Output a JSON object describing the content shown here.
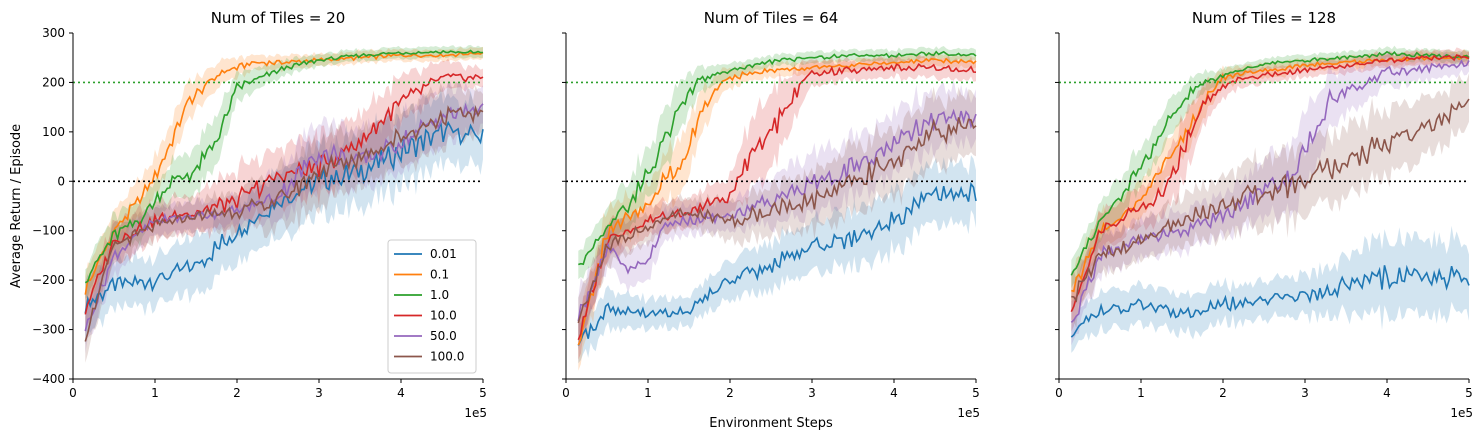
{
  "chart_data": [
    {
      "type": "line",
      "title": "Num of Tiles = 20",
      "xlabel": "",
      "ylabel": "Average Return / Episode",
      "x_multiplier_label": "1e5",
      "xlim": [
        0,
        5
      ],
      "ylim": [
        -400,
        300
      ],
      "xticks": [
        0,
        1,
        2,
        3,
        4,
        5
      ],
      "yticks": [
        -400,
        -300,
        -200,
        -100,
        0,
        100,
        200,
        300
      ],
      "reference_lines": [
        {
          "y": 200,
          "color": "#2ca02c",
          "style": "dotted"
        },
        {
          "y": 0,
          "color": "#000000",
          "style": "dotted"
        }
      ],
      "legend": {
        "position": "lower-right"
      },
      "series": [
        {
          "name": "0.01",
          "color": "#1f77b4",
          "x": [
            0.15,
            0.5,
            1.0,
            1.5,
            2.0,
            2.5,
            3.0,
            3.5,
            4.0,
            4.5,
            5.0
          ],
          "y": [
            -250,
            -210,
            -200,
            -170,
            -100,
            -40,
            0,
            20,
            60,
            100,
            90
          ],
          "band": [
            60,
            50,
            50,
            60,
            60,
            70,
            70,
            70,
            70,
            70,
            60
          ]
        },
        {
          "name": "0.1",
          "color": "#ff7f0e",
          "x": [
            0.15,
            0.5,
            0.8,
            1.0,
            1.2,
            1.4,
            1.6,
            1.8,
            2.0,
            2.2,
            2.5,
            3.0,
            3.5,
            4.0,
            4.5,
            5.0
          ],
          "y": [
            -220,
            -100,
            -40,
            10,
            80,
            160,
            190,
            220,
            230,
            240,
            240,
            245,
            250,
            255,
            255,
            260
          ],
          "band": [
            40,
            40,
            40,
            40,
            40,
            40,
            30,
            25,
            20,
            15,
            15,
            12,
            12,
            12,
            12,
            12
          ]
        },
        {
          "name": "1.0",
          "color": "#2ca02c",
          "x": [
            0.15,
            0.5,
            0.8,
            1.0,
            1.2,
            1.5,
            1.8,
            2.0,
            2.3,
            2.6,
            3.0,
            3.5,
            4.0,
            4.5,
            5.0
          ],
          "y": [
            -200,
            -110,
            -80,
            -40,
            0,
            20,
            100,
            190,
            210,
            230,
            245,
            255,
            260,
            262,
            260
          ],
          "band": [
            30,
            40,
            40,
            40,
            40,
            50,
            50,
            30,
            20,
            15,
            12,
            12,
            12,
            12,
            12
          ]
        },
        {
          "name": "10.0",
          "color": "#d62728",
          "x": [
            0.15,
            0.5,
            1.0,
            1.5,
            2.0,
            2.5,
            3.0,
            3.5,
            4.0,
            4.5,
            5.0
          ],
          "y": [
            -260,
            -120,
            -80,
            -60,
            -40,
            10,
            30,
            80,
            160,
            210,
            210
          ],
          "band": [
            40,
            40,
            40,
            40,
            60,
            60,
            60,
            60,
            50,
            30,
            20
          ]
        },
        {
          "name": "50.0",
          "color": "#9467bd",
          "x": [
            0.15,
            0.5,
            1.0,
            1.5,
            2.0,
            2.5,
            3.0,
            3.5,
            4.0,
            4.5,
            5.0
          ],
          "y": [
            -300,
            -150,
            -80,
            -70,
            -60,
            -30,
            60,
            40,
            80,
            130,
            150
          ],
          "band": [
            40,
            40,
            30,
            30,
            30,
            50,
            70,
            60,
            60,
            60,
            40
          ]
        },
        {
          "name": "100.0",
          "color": "#8c564b",
          "x": [
            0.15,
            0.5,
            1.0,
            1.5,
            2.0,
            2.5,
            3.0,
            3.5,
            4.0,
            4.5,
            5.0
          ],
          "y": [
            -310,
            -130,
            -90,
            -70,
            -60,
            -40,
            20,
            50,
            90,
            130,
            140
          ],
          "band": [
            50,
            40,
            30,
            30,
            40,
            60,
            70,
            60,
            60,
            60,
            40
          ]
        }
      ]
    },
    {
      "type": "line",
      "title": "Num of Tiles = 64",
      "xlabel": "Environment Steps",
      "ylabel": "",
      "x_multiplier_label": "1e5",
      "xlim": [
        0,
        5
      ],
      "ylim": [
        -400,
        300
      ],
      "xticks": [
        0,
        1,
        2,
        3,
        4,
        5
      ],
      "yticks": [
        -400,
        -300,
        -200,
        -100,
        0,
        100,
        200,
        300
      ],
      "reference_lines": [
        {
          "y": 200,
          "color": "#2ca02c",
          "style": "dotted"
        },
        {
          "y": 0,
          "color": "#000000",
          "style": "dotted"
        }
      ],
      "series": [
        {
          "name": "0.01",
          "color": "#1f77b4",
          "x": [
            0.15,
            0.5,
            1.0,
            1.5,
            2.0,
            2.5,
            3.0,
            3.5,
            4.0,
            4.5,
            5.0
          ],
          "y": [
            -330,
            -260,
            -270,
            -260,
            -200,
            -170,
            -130,
            -120,
            -80,
            -30,
            -20
          ],
          "band": [
            40,
            40,
            30,
            30,
            40,
            50,
            50,
            60,
            60,
            60,
            60
          ]
        },
        {
          "name": "0.1",
          "color": "#ff7f0e",
          "x": [
            0.15,
            0.5,
            0.8,
            1.0,
            1.2,
            1.4,
            1.6,
            1.8,
            2.0,
            2.3,
            2.6,
            3.0,
            3.5,
            4.0,
            4.5,
            5.0
          ],
          "y": [
            -340,
            -100,
            -70,
            -40,
            0,
            30,
            120,
            180,
            210,
            220,
            225,
            230,
            235,
            240,
            245,
            240
          ],
          "band": [
            50,
            50,
            40,
            40,
            50,
            60,
            50,
            30,
            20,
            15,
            15,
            12,
            12,
            12,
            12,
            12
          ]
        },
        {
          "name": "1.0",
          "color": "#2ca02c",
          "x": [
            0.15,
            0.5,
            0.8,
            1.0,
            1.2,
            1.4,
            1.6,
            1.8,
            2.0,
            2.3,
            2.6,
            3.0,
            3.5,
            4.0,
            4.5,
            5.0
          ],
          "y": [
            -170,
            -90,
            -40,
            20,
            80,
            150,
            200,
            215,
            225,
            235,
            245,
            250,
            255,
            255,
            258,
            255
          ],
          "band": [
            30,
            40,
            50,
            50,
            60,
            50,
            30,
            20,
            15,
            12,
            12,
            12,
            12,
            12,
            12,
            12
          ]
        },
        {
          "name": "10.0",
          "color": "#d62728",
          "x": [
            0.15,
            0.5,
            1.0,
            1.5,
            2.0,
            2.2,
            2.5,
            2.8,
            3.0,
            3.5,
            4.0,
            4.5,
            5.0
          ],
          "y": [
            -320,
            -120,
            -80,
            -60,
            -30,
            40,
            100,
            180,
            220,
            225,
            230,
            230,
            225
          ],
          "band": [
            40,
            40,
            30,
            30,
            40,
            70,
            80,
            50,
            25,
            20,
            20,
            20,
            20
          ]
        },
        {
          "name": "50.0",
          "color": "#9467bd",
          "x": [
            0.15,
            0.5,
            0.8,
            1.0,
            1.2,
            1.5,
            2.0,
            2.5,
            3.0,
            3.5,
            4.0,
            4.5,
            5.0
          ],
          "y": [
            -280,
            -130,
            -180,
            -160,
            -90,
            -80,
            -70,
            -40,
            -10,
            30,
            70,
            130,
            130
          ],
          "band": [
            50,
            40,
            40,
            40,
            30,
            30,
            30,
            50,
            60,
            60,
            60,
            60,
            50
          ]
        },
        {
          "name": "100.0",
          "color": "#8c564b",
          "x": [
            0.15,
            0.5,
            1.0,
            1.5,
            2.0,
            2.5,
            3.0,
            3.5,
            4.0,
            4.5,
            5.0
          ],
          "y": [
            -290,
            -130,
            -90,
            -60,
            -80,
            -60,
            -40,
            0,
            40,
            100,
            120
          ],
          "band": [
            50,
            40,
            30,
            30,
            40,
            50,
            60,
            70,
            70,
            70,
            60
          ]
        }
      ]
    },
    {
      "type": "line",
      "title": "Num of Tiles = 128",
      "xlabel": "",
      "ylabel": "",
      "x_multiplier_label": "1e5",
      "xlim": [
        0,
        5
      ],
      "ylim": [
        -400,
        300
      ],
      "xticks": [
        0,
        1,
        2,
        3,
        4,
        5
      ],
      "yticks": [
        -400,
        -300,
        -200,
        -100,
        0,
        100,
        200,
        300
      ],
      "reference_lines": [
        {
          "y": 200,
          "color": "#2ca02c",
          "style": "dotted"
        },
        {
          "y": 0,
          "color": "#000000",
          "style": "dotted"
        }
      ],
      "series": [
        {
          "name": "0.01",
          "color": "#1f77b4",
          "x": [
            0.15,
            0.5,
            1.0,
            1.5,
            2.0,
            2.5,
            3.0,
            3.5,
            4.0,
            4.5,
            5.0
          ],
          "y": [
            -310,
            -260,
            -250,
            -270,
            -250,
            -240,
            -230,
            -210,
            -190,
            -200,
            -190
          ],
          "band": [
            30,
            40,
            40,
            40,
            40,
            40,
            40,
            60,
            80,
            80,
            70
          ]
        },
        {
          "name": "0.1",
          "color": "#ff7f0e",
          "x": [
            0.15,
            0.5,
            1.0,
            1.3,
            1.6,
            1.8,
            2.0,
            2.3,
            2.6,
            3.0,
            3.5,
            4.0,
            4.5,
            5.0
          ],
          "y": [
            -230,
            -100,
            -40,
            40,
            110,
            170,
            210,
            220,
            225,
            235,
            240,
            245,
            250,
            250
          ],
          "band": [
            40,
            40,
            40,
            40,
            40,
            30,
            20,
            15,
            15,
            12,
            12,
            12,
            12,
            12
          ]
        },
        {
          "name": "1.0",
          "color": "#2ca02c",
          "x": [
            0.15,
            0.5,
            0.8,
            1.0,
            1.3,
            1.6,
            1.8,
            2.0,
            2.3,
            2.6,
            3.0,
            3.5,
            4.0,
            4.5,
            5.0
          ],
          "y": [
            -190,
            -80,
            -20,
            30,
            110,
            180,
            200,
            215,
            230,
            240,
            245,
            250,
            258,
            255,
            252
          ],
          "band": [
            30,
            40,
            40,
            40,
            40,
            30,
            20,
            15,
            12,
            12,
            12,
            12,
            12,
            12,
            12
          ]
        },
        {
          "name": "10.0",
          "color": "#d62728",
          "x": [
            0.15,
            0.5,
            1.0,
            1.3,
            1.5,
            1.7,
            1.9,
            2.1,
            2.5,
            3.0,
            3.5,
            4.0,
            4.5,
            5.0
          ],
          "y": [
            -260,
            -100,
            -50,
            -20,
            60,
            140,
            180,
            200,
            215,
            225,
            235,
            245,
            250,
            250
          ],
          "band": [
            40,
            40,
            40,
            50,
            70,
            50,
            30,
            20,
            15,
            15,
            15,
            15,
            15,
            15
          ]
        },
        {
          "name": "50.0",
          "color": "#9467bd",
          "x": [
            0.15,
            0.5,
            1.0,
            1.5,
            2.0,
            2.5,
            2.8,
            3.0,
            3.3,
            3.6,
            4.0,
            4.5,
            5.0
          ],
          "y": [
            -290,
            -150,
            -120,
            -100,
            -70,
            -20,
            0,
            60,
            160,
            190,
            220,
            230,
            240
          ],
          "band": [
            40,
            40,
            40,
            40,
            40,
            60,
            70,
            80,
            60,
            40,
            30,
            25,
            20
          ]
        },
        {
          "name": "100.0",
          "color": "#8c564b",
          "x": [
            0.15,
            0.5,
            1.0,
            1.5,
            2.0,
            2.5,
            3.0,
            3.5,
            4.0,
            4.5,
            5.0
          ],
          "y": [
            -240,
            -150,
            -120,
            -80,
            -50,
            -20,
            0,
            40,
            80,
            110,
            160
          ],
          "band": [
            50,
            40,
            40,
            50,
            60,
            70,
            70,
            70,
            70,
            60,
            50
          ]
        }
      ]
    }
  ]
}
